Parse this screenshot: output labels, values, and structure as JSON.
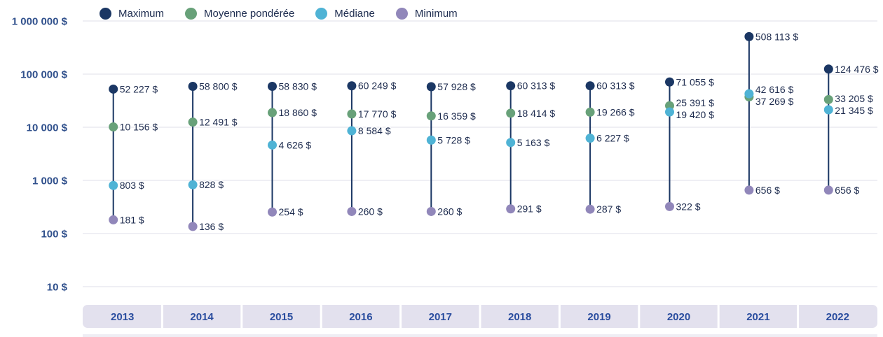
{
  "legend": {
    "items": [
      {
        "label": "Maximum"
      },
      {
        "label": "Moyenne pondérée"
      },
      {
        "label": "Médiane"
      },
      {
        "label": "Minimum"
      }
    ]
  },
  "chart_data": {
    "type": "scatter",
    "subtype": "dot-range-lollipop",
    "scale": "log",
    "title": "",
    "xlabel": "",
    "ylabel": "",
    "legend_position": "top",
    "grid": true,
    "categories": [
      "2013",
      "2014",
      "2015",
      "2016",
      "2017",
      "2018",
      "2019",
      "2020",
      "2021",
      "2022"
    ],
    "y_ticks": [
      {
        "label": "1 000 000 $",
        "value": 1000000
      },
      {
        "label": "100 000 $",
        "value": 100000
      },
      {
        "label": "10 000 $",
        "value": 10000
      },
      {
        "label": "1 000 $",
        "value": 1000
      },
      {
        "label": "100 $",
        "value": 100
      },
      {
        "label": "10 $",
        "value": 10
      }
    ],
    "series": [
      {
        "name": "Maximum",
        "color": "#1b3764",
        "values": [
          52227,
          58800,
          58830,
          60249,
          57928,
          60313,
          60313,
          71055,
          508113,
          124476
        ],
        "labels": [
          "52 227 $",
          "58 800 $",
          "58 830 $",
          "60 249 $",
          "57 928 $",
          "60 313 $",
          "60 313 $",
          "71 055 $",
          "508 113 $",
          "124 476 $"
        ]
      },
      {
        "name": "Moyenne pondérée",
        "color": "#68a179",
        "values": [
          10156,
          12491,
          18860,
          17770,
          16359,
          18414,
          19266,
          25391,
          37269,
          33205
        ],
        "labels": [
          "10 156 $",
          "12 491 $",
          "18 860 $",
          "17 770 $",
          "16 359 $",
          "18 414 $",
          "19 266 $",
          "25 391 $",
          "37 269 $",
          "33 205 $"
        ]
      },
      {
        "name": "Médiane",
        "color": "#4fb3d5",
        "values": [
          803,
          828,
          4626,
          8584,
          5728,
          5163,
          6227,
          19420,
          42616,
          21345
        ],
        "labels": [
          "803 $",
          "828 $",
          "4 626 $",
          "8 584 $",
          "5 728 $",
          "5 163 $",
          "6 227 $",
          "19 420 $",
          "42 616 $",
          "21 345 $"
        ]
      },
      {
        "name": "Minimum",
        "color": "#9187ba",
        "values": [
          181,
          136,
          254,
          260,
          260,
          291,
          287,
          322,
          656,
          656
        ],
        "labels": [
          "181 $",
          "136 $",
          "254 $",
          "260 $",
          "260 $",
          "291 $",
          "287 $",
          "322 $",
          "656 $",
          "656 $"
        ]
      }
    ],
    "line_color": "#1b3764",
    "colors": {
      "grid": "#eaeaf1",
      "band": "#e3e1ee",
      "band_separator": "#ffffff",
      "band_text": "#2a4d9f",
      "tick_text": "#30508c",
      "label_text": "#1d2b4e",
      "bottom_strip": "#efeef4"
    }
  }
}
